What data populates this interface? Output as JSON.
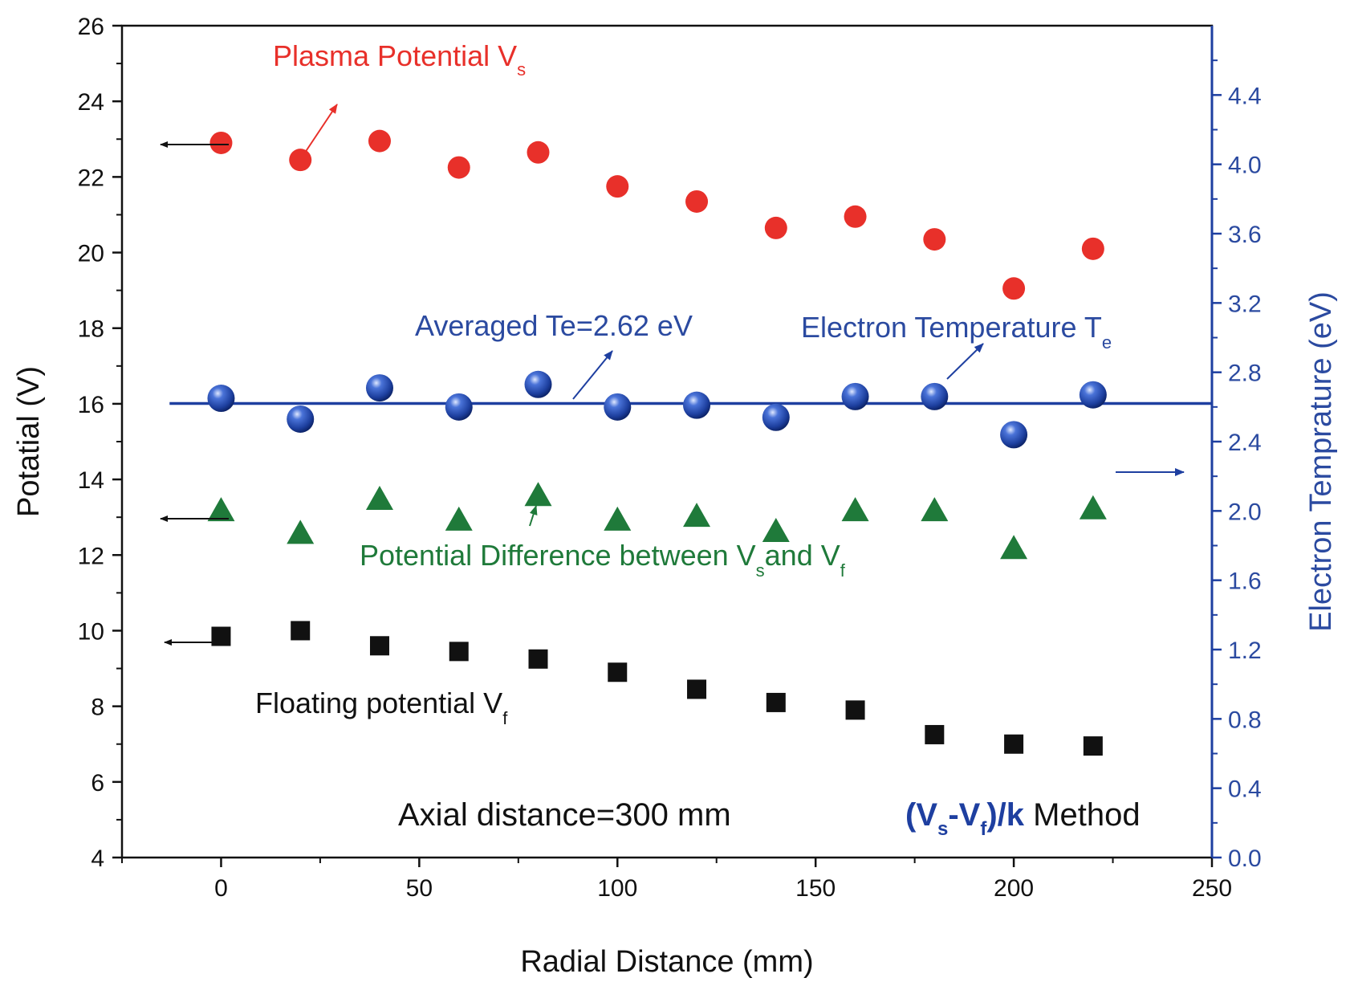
{
  "chart_data": {
    "type": "scatter",
    "xlabel": "Radial Distance (mm)",
    "ylabel_left": "Potatial (V)",
    "ylabel_right": "Electron Temprature (eV)",
    "xlim": [
      -25,
      250
    ],
    "ylim_left": [
      4,
      26
    ],
    "ylim_right": [
      0.0,
      4.8
    ],
    "x_ticks": [
      "0",
      "50",
      "100",
      "150",
      "200",
      "250"
    ],
    "y_left_ticks": [
      "4",
      "6",
      "8",
      "10",
      "12",
      "14",
      "16",
      "18",
      "20",
      "22",
      "24",
      "26"
    ],
    "y_right_ticks": [
      "0.0",
      "0.4",
      "0.8",
      "1.2",
      "1.6",
      "2.0",
      "2.4",
      "2.8",
      "3.2",
      "3.6",
      "4.0",
      "4.4"
    ],
    "x": [
      0,
      20,
      40,
      60,
      80,
      100,
      120,
      140,
      160,
      180,
      200,
      220
    ],
    "series": [
      {
        "name": "Plasma Potential Vs",
        "axis": "left",
        "marker": "circle",
        "color": "#e8302a",
        "values": [
          22.9,
          22.45,
          22.95,
          22.25,
          22.65,
          21.75,
          21.35,
          20.65,
          20.95,
          20.35,
          19.05,
          20.1
        ]
      },
      {
        "name": "Electron Temperature Te",
        "axis": "right",
        "marker": "sphere",
        "color": "#1e3fa0",
        "values": [
          2.65,
          2.53,
          2.71,
          2.6,
          2.73,
          2.6,
          2.61,
          2.54,
          2.66,
          2.66,
          2.44,
          2.67
        ]
      },
      {
        "name": "Potential Difference between Vs and Vf",
        "axis": "left",
        "marker": "triangle",
        "color": "#1f7a3a",
        "values": [
          13.15,
          12.55,
          13.45,
          12.9,
          13.55,
          12.9,
          13.0,
          12.6,
          13.15,
          13.15,
          12.15,
          13.2
        ]
      },
      {
        "name": "Floating potential Vf",
        "axis": "left",
        "marker": "square",
        "color": "#111111",
        "values": [
          9.85,
          10.0,
          9.6,
          9.45,
          9.25,
          8.9,
          8.45,
          8.1,
          7.9,
          7.25,
          7.0,
          6.95
        ]
      }
    ],
    "averaged_te": {
      "value": 2.62,
      "axis": "right",
      "color": "#1e3fa0"
    },
    "annotations": {
      "plasma": {
        "main": "Plasma Potential V",
        "sub": "s"
      },
      "averaged": {
        "text": "Averaged Te=2.62 eV"
      },
      "te": {
        "main": "Electron Temperature T",
        "sub": "e"
      },
      "diff": {
        "part1": "Potential Difference between V",
        "sub1": "s",
        "part2": "and V",
        "sub2": "f"
      },
      "floating": {
        "main": "Floating potential V",
        "sub": "f"
      },
      "axial": {
        "text": "Axial distance=300 mm"
      },
      "method": {
        "open": "(V",
        "sub1": "s",
        "mid": "-V",
        "sub2": "f",
        "close": ")/k",
        "tail": " Method"
      }
    }
  }
}
